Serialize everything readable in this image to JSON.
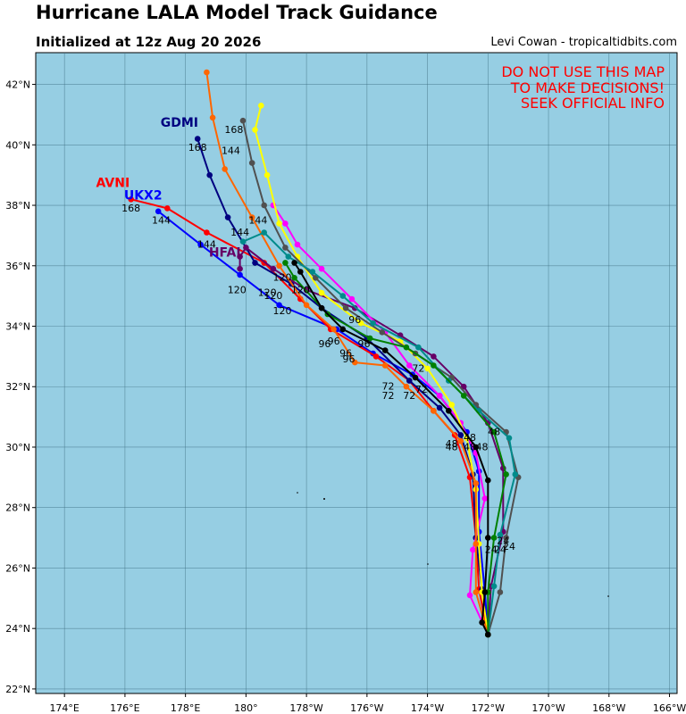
{
  "title": "Hurricane LALA Model Track Guidance",
  "subtitle": "Initialized at 12z Aug 20 2026",
  "credit": "Levi Cowan - tropicaltidbits.com",
  "warning": [
    "DO NOT USE THIS MAP",
    "TO MAKE DECISIONS!",
    "SEEK OFFICIAL INFO"
  ],
  "colors": {
    "ocean": "#96cee3",
    "grid": "#3d6e80",
    "warning": "#ff0000"
  },
  "map": {
    "lon_ticks": [
      {
        "lon": 174,
        "label": "174°E"
      },
      {
        "lon": 176,
        "label": "176°E"
      },
      {
        "lon": 178,
        "label": "178°E"
      },
      {
        "lon": 180,
        "label": "180°"
      },
      {
        "lon": 182,
        "label": "178°W"
      },
      {
        "lon": 184,
        "label": "176°W"
      },
      {
        "lon": 186,
        "label": "174°W"
      },
      {
        "lon": 188,
        "label": "172°W"
      },
      {
        "lon": 190,
        "label": "170°W"
      },
      {
        "lon": 192,
        "label": "168°W"
      },
      {
        "lon": 194,
        "label": "166°W"
      }
    ],
    "lat_ticks": [
      {
        "lat": 22,
        "label": "22°N"
      },
      {
        "lat": 24,
        "label": "24°N"
      },
      {
        "lat": 26,
        "label": "26°N"
      },
      {
        "lat": 28,
        "label": "28°N"
      },
      {
        "lat": 30,
        "label": "30°N"
      },
      {
        "lat": 32,
        "label": "32°N"
      },
      {
        "lat": 34,
        "label": "34°N"
      },
      {
        "lat": 36,
        "label": "36°N"
      },
      {
        "lat": 38,
        "label": "38°N"
      },
      {
        "lat": 40,
        "label": "40°N"
      },
      {
        "lat": 42,
        "label": "42°N"
      }
    ],
    "lon_range": [
      173.05,
      194.25
    ],
    "lat_range": [
      21.85,
      43.05
    ]
  },
  "model_labels": [
    {
      "text": "GDMI",
      "color": "#000080",
      "lon": 177.8,
      "lat": 40.6
    },
    {
      "text": "AVNI",
      "color": "#ff0000",
      "lon": 175.6,
      "lat": 38.6
    },
    {
      "text": "UKX2",
      "color": "#0000ff",
      "lon": 176.6,
      "lat": 38.2
    },
    {
      "text": "HFAI",
      "color": "#660066",
      "lon": 179.3,
      "lat": 36.3
    }
  ],
  "hour_labels": [
    {
      "text": "168",
      "lon": 176.2,
      "lat": 37.8
    },
    {
      "text": "144",
      "lon": 177.2,
      "lat": 37.4
    },
    {
      "text": "144",
      "lon": 178.7,
      "lat": 36.6
    },
    {
      "text": "168",
      "lon": 178.4,
      "lat": 39.8
    },
    {
      "text": "168",
      "lon": 179.6,
      "lat": 40.4
    },
    {
      "text": "144",
      "lon": 179.5,
      "lat": 39.7
    },
    {
      "text": "144",
      "lon": 180.4,
      "lat": 37.4
    },
    {
      "text": "144",
      "lon": 179.8,
      "lat": 37.0
    },
    {
      "text": "120",
      "lon": 179.7,
      "lat": 35.1
    },
    {
      "text": "120",
      "lon": 180.7,
      "lat": 35.0
    },
    {
      "text": "120",
      "lon": 181.2,
      "lat": 34.4
    },
    {
      "text": "120",
      "lon": 181.2,
      "lat": 35.5
    },
    {
      "text": "120",
      "lon": 181.8,
      "lat": 35.1
    },
    {
      "text": "120",
      "lon": 180.9,
      "lat": 34.9
    },
    {
      "text": "96",
      "lon": 183.6,
      "lat": 34.1
    },
    {
      "text": "96",
      "lon": 182.9,
      "lat": 33.4
    },
    {
      "text": "96",
      "lon": 182.6,
      "lat": 33.3
    },
    {
      "text": "96",
      "lon": 183.3,
      "lat": 33.0
    },
    {
      "text": "96",
      "lon": 183.9,
      "lat": 33.3
    },
    {
      "text": "96",
      "lon": 183.4,
      "lat": 32.8
    },
    {
      "text": "72",
      "lon": 185.7,
      "lat": 32.5
    },
    {
      "text": "72",
      "lon": 184.7,
      "lat": 31.9
    },
    {
      "text": "72",
      "lon": 184.7,
      "lat": 31.6
    },
    {
      "text": "72",
      "lon": 185.4,
      "lat": 31.6
    },
    {
      "text": "72",
      "lon": 185.8,
      "lat": 31.8
    },
    {
      "text": "48",
      "lon": 187.4,
      "lat": 30.2
    },
    {
      "text": "48",
      "lon": 188.2,
      "lat": 30.4
    },
    {
      "text": "48",
      "lon": 187.8,
      "lat": 29.9
    },
    {
      "text": "48",
      "lon": 186.8,
      "lat": 29.9
    },
    {
      "text": "48",
      "lon": 186.8,
      "lat": 30.0
    },
    {
      "text": "48",
      "lon": 187.4,
      "lat": 29.9
    },
    {
      "text": "24",
      "lon": 188.5,
      "lat": 26.8
    },
    {
      "text": "24",
      "lon": 188.7,
      "lat": 26.6
    },
    {
      "text": "24",
      "lon": 188.1,
      "lat": 26.5
    },
    {
      "text": "24",
      "lon": 188.4,
      "lat": 26.5
    }
  ],
  "tracks": [
    {
      "color": "#0000ff",
      "points": [
        [
          188,
          23.8
        ],
        [
          187.9,
          25.2
        ],
        [
          187.7,
          27.2
        ],
        [
          187.7,
          29.2
        ],
        [
          187.3,
          30.5
        ],
        [
          186.4,
          31.7
        ],
        [
          185.5,
          32.4
        ],
        [
          184.2,
          33.1
        ],
        [
          183,
          33.9
        ],
        [
          181.1,
          34.7
        ],
        [
          179.8,
          35.7
        ],
        [
          178.5,
          36.7
        ],
        [
          177.1,
          37.8
        ]
      ]
    },
    {
      "color": "#ff0000",
      "points": [
        [
          188,
          23.8
        ],
        [
          187.7,
          25.3
        ],
        [
          187.6,
          27.0
        ],
        [
          187.4,
          29.0
        ],
        [
          186.9,
          30.4
        ],
        [
          186.2,
          31.2
        ],
        [
          185.4,
          32.2
        ],
        [
          184.3,
          33
        ],
        [
          182.8,
          33.9
        ],
        [
          181.8,
          34.9
        ],
        [
          180.6,
          36.1
        ],
        [
          178.7,
          37.1
        ],
        [
          177.4,
          37.9
        ],
        [
          176.2,
          38.2
        ]
      ]
    },
    {
      "color": "#000080",
      "points": [
        [
          188,
          23.8
        ],
        [
          187.8,
          25.3
        ],
        [
          187.6,
          27.0
        ],
        [
          187.5,
          29.1
        ],
        [
          187.1,
          30.4
        ],
        [
          186.4,
          31.3
        ],
        [
          185.4,
          32.2
        ],
        [
          184,
          33.6
        ],
        [
          182.5,
          34.6
        ],
        [
          181.5,
          35.4
        ],
        [
          180.3,
          36.1
        ],
        [
          179.4,
          37.6
        ],
        [
          178.8,
          39
        ],
        [
          178.4,
          40.2
        ]
      ]
    },
    {
      "color": "#660066",
      "points": [
        [
          188,
          23.8
        ],
        [
          188.1,
          25.4
        ],
        [
          188.5,
          27.2
        ],
        [
          188.5,
          29.3
        ],
        [
          188,
          30.8
        ],
        [
          187.2,
          32
        ],
        [
          186.2,
          33
        ],
        [
          185.1,
          33.7
        ],
        [
          183.6,
          34.6
        ],
        [
          182,
          35.2
        ],
        [
          180.9,
          35.9
        ],
        [
          180,
          36.6
        ],
        [
          179.8,
          36.3
        ],
        [
          179.8,
          35.9
        ]
      ]
    },
    {
      "color": "#ff00ff",
      "points": [
        [
          188,
          23.8
        ],
        [
          187.4,
          25.1
        ],
        [
          187.5,
          26.6
        ],
        [
          187.9,
          28.3
        ],
        [
          187.6,
          29.8
        ],
        [
          187.1,
          30.8
        ],
        [
          186.4,
          31.7
        ],
        [
          185.4,
          32.7
        ],
        [
          184.6,
          33.8
        ],
        [
          183.5,
          34.9
        ],
        [
          182.5,
          35.9
        ],
        [
          181.7,
          36.7
        ],
        [
          181.3,
          37.4
        ],
        [
          180.9,
          38
        ]
      ]
    },
    {
      "color": "#ffff00",
      "points": [
        [
          188,
          23.8
        ],
        [
          187.8,
          25.2
        ],
        [
          187.7,
          26.8
        ],
        [
          187.6,
          28.6
        ],
        [
          187.3,
          30.3
        ],
        [
          186.8,
          31.4
        ],
        [
          186,
          32.6
        ],
        [
          185.1,
          33.5
        ],
        [
          183.8,
          34.1
        ],
        [
          182.5,
          35.1
        ],
        [
          181.7,
          36.3
        ],
        [
          181.1,
          37.4
        ],
        [
          180.7,
          39.0
        ],
        [
          180.3,
          40.5
        ],
        [
          180.5,
          41.3
        ]
      ]
    },
    {
      "color": "#ff6600",
      "points": [
        [
          188,
          23.8
        ],
        [
          187.6,
          25.2
        ],
        [
          187.6,
          26.8
        ],
        [
          187.6,
          28.8
        ],
        [
          187.1,
          30.2
        ],
        [
          186.2,
          31.2
        ],
        [
          185.3,
          32
        ],
        [
          184.6,
          32.7
        ],
        [
          183.6,
          32.8
        ],
        [
          182.9,
          33.9
        ],
        [
          182,
          34.7
        ],
        [
          181.1,
          36
        ],
        [
          180.2,
          37.6
        ],
        [
          179.3,
          39.2
        ],
        [
          178.9,
          40.9
        ],
        [
          178.7,
          42.4
        ]
      ]
    },
    {
      "color": "#505050",
      "points": [
        [
          188,
          23.8
        ],
        [
          188.4,
          25.2
        ],
        [
          188.6,
          27.0
        ],
        [
          189,
          29
        ],
        [
          188.6,
          30.5
        ],
        [
          187.6,
          31.4
        ],
        [
          186.8,
          32.3
        ],
        [
          185.6,
          33.1
        ],
        [
          184.5,
          33.8
        ],
        [
          183.3,
          34.6
        ],
        [
          182.3,
          35.6
        ],
        [
          181.3,
          36.6
        ],
        [
          180.6,
          38.0
        ],
        [
          180.2,
          39.4
        ],
        [
          179.9,
          40.8
        ]
      ]
    },
    {
      "color": "#008b8b",
      "points": [
        [
          188,
          23.8
        ],
        [
          188.2,
          25.4
        ],
        [
          188.4,
          27.1
        ],
        [
          188.9,
          29.1
        ],
        [
          188.7,
          30.3
        ],
        [
          187.7,
          31.2
        ],
        [
          186.7,
          32.2
        ],
        [
          185.7,
          33.3
        ],
        [
          184.2,
          34.1
        ],
        [
          183.2,
          35
        ],
        [
          182.2,
          35.8
        ],
        [
          181.4,
          36.3
        ],
        [
          180.6,
          37.1
        ],
        [
          179.9,
          36.8
        ]
      ]
    },
    {
      "color": "#008000",
      "points": [
        [
          188,
          23.8
        ],
        [
          188,
          25.2
        ],
        [
          188.2,
          27.0
        ],
        [
          188.6,
          29.1
        ],
        [
          188.2,
          30.5
        ],
        [
          187.2,
          31.7
        ],
        [
          186.2,
          32.7
        ],
        [
          185.3,
          33.3
        ],
        [
          184.1,
          33.6
        ],
        [
          182.7,
          34.4
        ],
        [
          181.6,
          35.6
        ],
        [
          181.3,
          36.1
        ]
      ]
    },
    {
      "color": "#000000",
      "points": [
        [
          188,
          23.8
        ],
        [
          187.8,
          24.2
        ],
        [
          187.9,
          25.2
        ],
        [
          188,
          27.0
        ],
        [
          188,
          28.9
        ],
        [
          187.6,
          30
        ],
        [
          186.7,
          31.2
        ],
        [
          185.6,
          32.3
        ],
        [
          184.6,
          33.2
        ],
        [
          183.2,
          33.9
        ],
        [
          182.5,
          34.6
        ],
        [
          181.8,
          35.8
        ],
        [
          181.6,
          36.1
        ]
      ]
    }
  ]
}
